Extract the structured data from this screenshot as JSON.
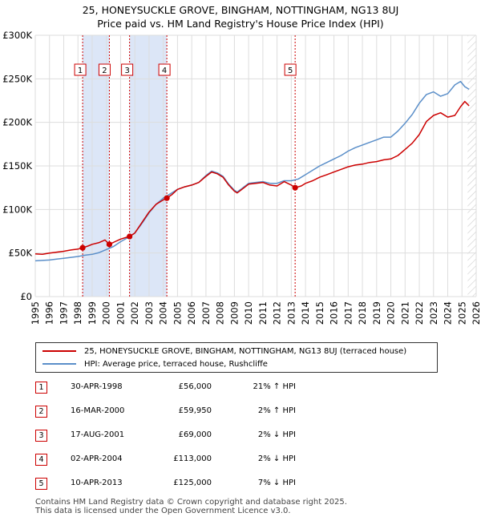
{
  "chart_data": {
    "type": "line",
    "title": "25, HONEYSUCKLE GROVE, BINGHAM, NOTTINGHAM, NG13 8UJ",
    "subtitle": "Price paid vs. HM Land Registry's House Price Index (HPI)",
    "xlim": [
      1995,
      2026
    ],
    "ylim": [
      0,
      300000
    ],
    "x_ticks": [
      "1995",
      "1996",
      "1997",
      "1998",
      "1999",
      "2000",
      "2001",
      "2002",
      "2003",
      "2004",
      "2005",
      "2006",
      "2007",
      "2008",
      "2009",
      "2010",
      "2011",
      "2012",
      "2013",
      "2014",
      "2015",
      "2016",
      "2017",
      "2018",
      "2019",
      "2020",
      "2021",
      "2022",
      "2023",
      "2024",
      "2025",
      "2026"
    ],
    "y_ticks": [
      {
        "value": 0,
        "label": "£0"
      },
      {
        "value": 50000,
        "label": "£50K"
      },
      {
        "value": 100000,
        "label": "£100K"
      },
      {
        "value": 150000,
        "label": "£150K"
      },
      {
        "value": 200000,
        "label": "£200K"
      },
      {
        "value": 250000,
        "label": "£250K"
      },
      {
        "value": 300000,
        "label": "£300K"
      }
    ],
    "grid": true,
    "series": [
      {
        "name": "25, HONEYSUCKLE GROVE, BINGHAM, NOTTINGHAM, NG13 8UJ (terraced house)",
        "color": "#cc0000",
        "x": [
          1995.0,
          1995.5,
          1996.0,
          1996.5,
          1997.0,
          1997.5,
          1998.0,
          1998.33,
          1998.7,
          1999.0,
          1999.5,
          1999.9,
          2000.21,
          2000.6,
          2001.0,
          2001.4,
          2001.63,
          2002.0,
          2002.5,
          2003.0,
          2003.5,
          2004.0,
          2004.25,
          2004.6,
          2005.0,
          2005.5,
          2006.0,
          2006.5,
          2007.0,
          2007.4,
          2007.8,
          2008.2,
          2008.6,
          2009.0,
          2009.2,
          2009.6,
          2010.0,
          2010.5,
          2011.0,
          2011.5,
          2012.0,
          2012.5,
          2013.0,
          2013.27,
          2013.7,
          2014.0,
          2014.5,
          2015.0,
          2015.5,
          2016.0,
          2016.5,
          2017.0,
          2017.5,
          2018.0,
          2018.5,
          2019.0,
          2019.5,
          2020.0,
          2020.5,
          2021.0,
          2021.5,
          2022.0,
          2022.5,
          2023.0,
          2023.5,
          2024.0,
          2024.5,
          2024.9,
          2025.2,
          2025.5
        ],
        "values": [
          49000,
          48500,
          50000,
          51000,
          52000,
          53500,
          54500,
          56000,
          58000,
          60000,
          62000,
          65000,
          59950,
          63000,
          66000,
          68000,
          69000,
          73000,
          85000,
          97000,
          106000,
          111000,
          113000,
          117000,
          123000,
          126000,
          128000,
          131000,
          138000,
          143000,
          141000,
          137000,
          128000,
          121000,
          119000,
          124000,
          129000,
          130000,
          131000,
          128000,
          127000,
          132000,
          128000,
          125000,
          127000,
          130000,
          133000,
          137000,
          140000,
          143000,
          146000,
          149000,
          151000,
          152000,
          154000,
          155000,
          157000,
          158000,
          162000,
          169000,
          176000,
          186000,
          201000,
          208000,
          211000,
          206000,
          208000,
          218000,
          224000,
          219000
        ]
      },
      {
        "name": "HPI: Average price, terraced house, Rushcliffe",
        "color": "#5b8fc9",
        "x": [
          1995.0,
          1995.5,
          1996.0,
          1996.5,
          1997.0,
          1997.5,
          1998.0,
          1998.5,
          1999.0,
          1999.5,
          2000.0,
          2000.5,
          2001.0,
          2001.5,
          2002.0,
          2002.5,
          2003.0,
          2003.5,
          2004.0,
          2004.5,
          2005.0,
          2005.5,
          2006.0,
          2006.5,
          2007.0,
          2007.4,
          2007.8,
          2008.2,
          2008.6,
          2009.0,
          2009.2,
          2009.6,
          2010.0,
          2010.5,
          2011.0,
          2011.5,
          2012.0,
          2012.5,
          2013.0,
          2013.5,
          2014.0,
          2014.5,
          2015.0,
          2015.5,
          2016.0,
          2016.5,
          2017.0,
          2017.5,
          2018.0,
          2018.5,
          2019.0,
          2019.5,
          2020.0,
          2020.5,
          2021.0,
          2021.5,
          2022.0,
          2022.5,
          2023.0,
          2023.5,
          2024.0,
          2024.5,
          2024.9,
          2025.2,
          2025.5
        ],
        "values": [
          41000,
          41500,
          42000,
          43000,
          44000,
          45000,
          46000,
          47500,
          48500,
          50500,
          54000,
          57500,
          63000,
          67500,
          73000,
          84000,
          96000,
          106000,
          113000,
          118000,
          123000,
          126000,
          128000,
          131000,
          139000,
          144000,
          142000,
          138000,
          129000,
          122000,
          120000,
          125000,
          130000,
          131000,
          132000,
          130000,
          130000,
          133000,
          133000,
          135000,
          140000,
          145000,
          150000,
          154000,
          158000,
          162000,
          167000,
          171000,
          174000,
          177000,
          180000,
          183000,
          183000,
          190000,
          199000,
          209000,
          222000,
          232000,
          235000,
          230000,
          233000,
          243000,
          247000,
          241000,
          238000
        ]
      }
    ],
    "sales": [
      {
        "id": "1",
        "x": 1998.33,
        "price": 56000,
        "date": "30-APR-1998",
        "price_label": "£56,000",
        "hpi": "21% ↑ HPI"
      },
      {
        "id": "2",
        "x": 2000.21,
        "price": 59950,
        "date": "16-MAR-2000",
        "price_label": "£59,950",
        "hpi": "2% ↑ HPI"
      },
      {
        "id": "3",
        "x": 2001.63,
        "price": 69000,
        "date": "17-AUG-2001",
        "price_label": "£69,000",
        "hpi": "2% ↓ HPI"
      },
      {
        "id": "4",
        "x": 2004.25,
        "price": 113000,
        "date": "02-APR-2004",
        "price_label": "£113,000",
        "hpi": "2% ↓ HPI"
      },
      {
        "id": "5",
        "x": 2013.27,
        "price": 125000,
        "date": "10-APR-2013",
        "price_label": "£125,000",
        "hpi": "7% ↓ HPI"
      }
    ],
    "shaded_ranges": [
      [
        1998.33,
        2000.21
      ],
      [
        2001.63,
        2004.25
      ]
    ],
    "future_from": 2025.4,
    "colors": {
      "sale": "#cc0000",
      "shade": "#dce6f7",
      "grid": "#dddddd",
      "hatch": "#cccccc"
    }
  },
  "legend": {
    "property_label": "25, HONEYSUCKLE GROVE, BINGHAM, NOTTINGHAM, NG13 8UJ (terraced house)",
    "hpi_label": "HPI: Average price, terraced house, Rushcliffe"
  },
  "footer": {
    "line1": "Contains HM Land Registry data © Crown copyright and database right 2025.",
    "line2": "This data is licensed under the Open Government Licence v3.0."
  }
}
